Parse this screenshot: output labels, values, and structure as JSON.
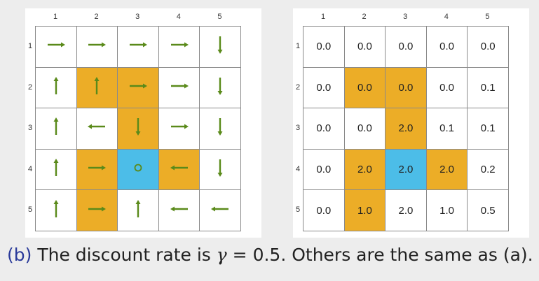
{
  "colors": {
    "forbidden": "#ecad27",
    "target": "#4cbde8",
    "arrow": "#5a8a1a",
    "label": "#2a3a9a"
  },
  "column_labels": [
    "1",
    "2",
    "3",
    "4",
    "5"
  ],
  "row_labels": [
    "1",
    "2",
    "3",
    "4",
    "5"
  ],
  "cell_types": [
    [
      "normal",
      "normal",
      "normal",
      "normal",
      "normal"
    ],
    [
      "normal",
      "forbidden",
      "forbidden",
      "normal",
      "normal"
    ],
    [
      "normal",
      "normal",
      "forbidden",
      "normal",
      "normal"
    ],
    [
      "normal",
      "forbidden",
      "target",
      "forbidden",
      "normal"
    ],
    [
      "normal",
      "forbidden",
      "normal",
      "normal",
      "normal"
    ]
  ],
  "policy": [
    [
      "right",
      "right",
      "right",
      "right",
      "down"
    ],
    [
      "up",
      "up",
      "right",
      "right",
      "down"
    ],
    [
      "up",
      "left",
      "down",
      "right",
      "down"
    ],
    [
      "up",
      "right",
      "stay",
      "left",
      "down"
    ],
    [
      "up",
      "right",
      "up",
      "left",
      "left"
    ]
  ],
  "state_values": [
    [
      "0.0",
      "0.0",
      "0.0",
      "0.0",
      "0.0"
    ],
    [
      "0.0",
      "0.0",
      "0.0",
      "0.0",
      "0.1"
    ],
    [
      "0.0",
      "0.0",
      "2.0",
      "0.1",
      "0.1"
    ],
    [
      "0.0",
      "2.0",
      "2.0",
      "2.0",
      "0.2"
    ],
    [
      "0.0",
      "1.0",
      "2.0",
      "1.0",
      "0.5"
    ]
  ],
  "caption": {
    "label": "(b)",
    "text_before": "The discount rate is ",
    "gamma_symbol": "γ",
    "equals": " = ",
    "gamma_value": "0.5",
    "text_after": ". Others are the same as (a)."
  }
}
